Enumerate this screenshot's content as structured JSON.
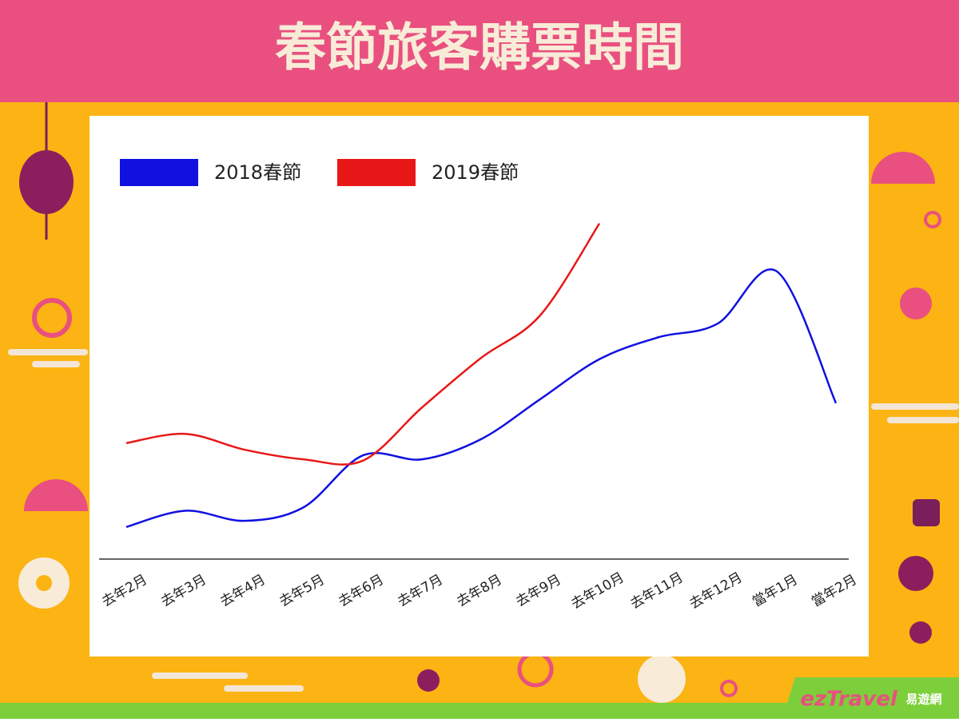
{
  "chart_data": {
    "type": "line",
    "title": "春節旅客購票時間",
    "categories": [
      "去年2月",
      "去年3月",
      "去年4月",
      "去年5月",
      "去年6月",
      "去年7月",
      "去年8月",
      "去年9月",
      "去年10月",
      "去年11月",
      "去年12月",
      "當年1月",
      "當年2月"
    ],
    "series": [
      {
        "name": "2018春節",
        "color": "#1010e0",
        "values": [
          7.3,
          11,
          8.7,
          11.8,
          23.6,
          22.7,
          27.3,
          36.4,
          45.5,
          50.5,
          53.6,
          65.5,
          35.5
        ]
      },
      {
        "name": "2019春節",
        "color": "#e81818",
        "values": [
          26.4,
          28.5,
          24.9,
          22.7,
          22.4,
          34.5,
          45.8,
          55.5,
          76.4,
          null,
          null,
          null,
          null
        ]
      }
    ],
    "ylim": [
      0,
      100
    ],
    "legend": "top-left",
    "brand": {
      "name": "ezTravel",
      "subname": "易遊網"
    }
  }
}
